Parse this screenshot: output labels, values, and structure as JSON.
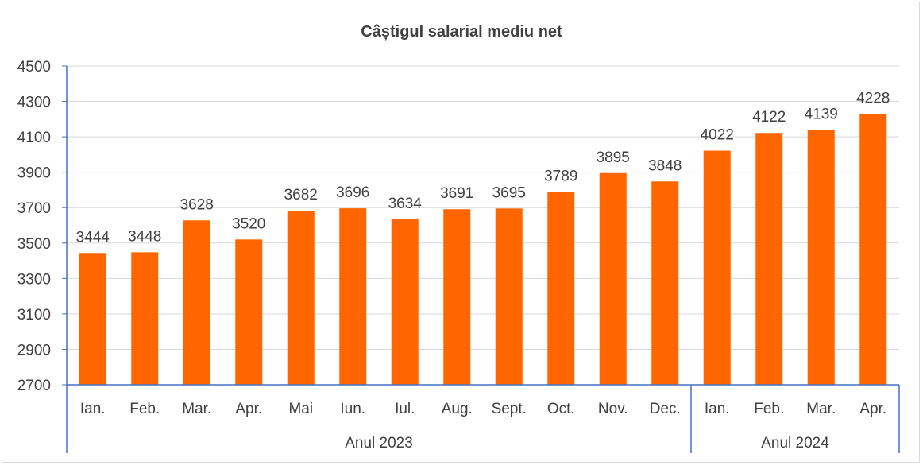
{
  "chart_data": {
    "type": "bar",
    "title": "Câștigul salarial mediu net",
    "xlabel": "",
    "ylabel": "",
    "ylim": [
      2700,
      4500
    ],
    "yticks": [
      2700,
      2900,
      3100,
      3300,
      3500,
      3700,
      3900,
      4100,
      4300,
      4500
    ],
    "grid": true,
    "legend": "none",
    "bar_color": "#ff6600",
    "categories": [
      "Ian.",
      "Feb.",
      "Mar.",
      "Apr.",
      "Mai",
      "Iun.",
      "Iul.",
      "Aug.",
      "Sept.",
      "Oct.",
      "Nov.",
      "Dec.",
      "Ian.",
      "Feb.",
      "Mar.",
      "Apr."
    ],
    "values": [
      3444,
      3448,
      3628,
      3520,
      3682,
      3696,
      3634,
      3691,
      3695,
      3789,
      3895,
      3848,
      4022,
      4122,
      4139,
      4228
    ],
    "groups": [
      {
        "label": "Anul 2023",
        "count": 12
      },
      {
        "label": "Anul 2024",
        "count": 4
      }
    ]
  }
}
